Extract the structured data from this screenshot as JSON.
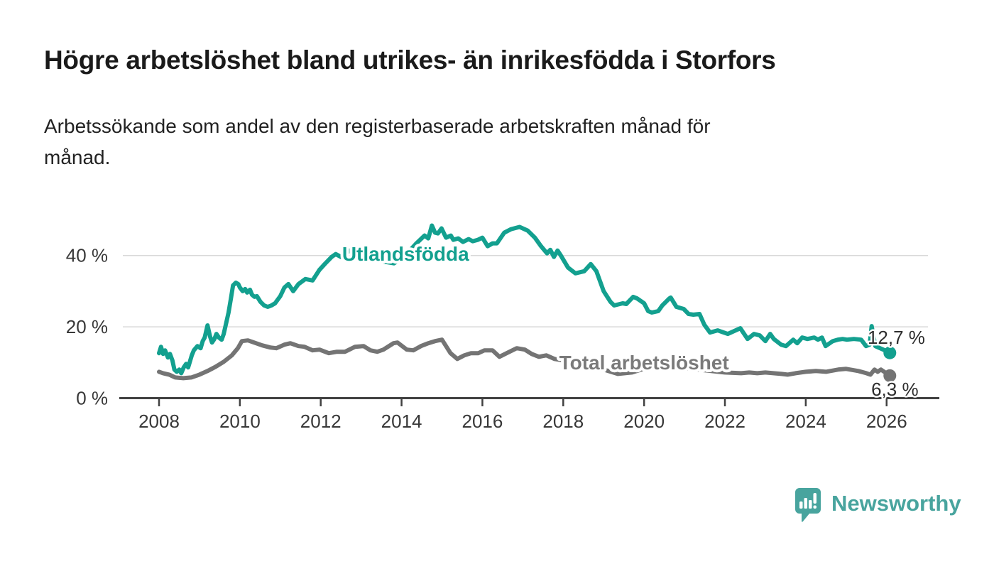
{
  "header": {
    "title": "Högre arbetslöshet bland utrikes- än inrikesfödda i Storfors",
    "subtitle_lines": [
      "Arbetssökande som andel av den registerbaserade arbetskraften månad för",
      "månad."
    ]
  },
  "chart_data": {
    "type": "line",
    "title": "Högre arbetslöshet bland utrikes- än inrikesfödda i Storfors",
    "xlabel": "",
    "ylabel": "Arbetssökande som andel av den registerbaserade arbetskraften",
    "x_axis": {
      "range": [
        2007.1,
        2027.3
      ],
      "ticks": [
        {
          "value": 2008,
          "label": "2008"
        },
        {
          "value": 2010,
          "label": "2010"
        },
        {
          "value": 2012,
          "label": "2012"
        },
        {
          "value": 2014,
          "label": "2014"
        },
        {
          "value": 2016,
          "label": "2016"
        },
        {
          "value": 2018,
          "label": "2018"
        },
        {
          "value": 2020,
          "label": "2020"
        },
        {
          "value": 2022,
          "label": "2022"
        },
        {
          "value": 2024,
          "label": "2024"
        },
        {
          "value": 2026,
          "label": "2026"
        }
      ]
    },
    "y_axis": {
      "range": [
        0,
        50
      ],
      "unit": "%",
      "gridlines": true,
      "ticks": [
        {
          "value": 0,
          "label": "0 %"
        },
        {
          "value": 20,
          "label": "20 %"
        },
        {
          "value": 40,
          "label": "40 %"
        }
      ]
    },
    "series": [
      {
        "name": "Utlandsfödda",
        "color": "#13a08f",
        "end_value": 12.7,
        "end_label": "12,7 %",
        "points": [
          [
            2008.0,
            12.6
          ],
          [
            2008.05,
            14.4
          ],
          [
            2008.1,
            12.4
          ],
          [
            2008.15,
            13.4
          ],
          [
            2008.22,
            11.4
          ],
          [
            2008.27,
            12.4
          ],
          [
            2008.33,
            10.6
          ],
          [
            2008.38,
            8.0
          ],
          [
            2008.44,
            7.4
          ],
          [
            2008.5,
            8.0
          ],
          [
            2008.55,
            7.0
          ],
          [
            2008.61,
            8.6
          ],
          [
            2008.67,
            9.6
          ],
          [
            2008.72,
            8.6
          ],
          [
            2008.81,
            12.0
          ],
          [
            2008.86,
            13.4
          ],
          [
            2008.95,
            14.6
          ],
          [
            2009.03,
            14.0
          ],
          [
            2009.08,
            16.0
          ],
          [
            2009.13,
            17.0
          ],
          [
            2009.2,
            20.4
          ],
          [
            2009.26,
            17.4
          ],
          [
            2009.31,
            15.6
          ],
          [
            2009.37,
            16.6
          ],
          [
            2009.42,
            18.0
          ],
          [
            2009.48,
            17.0
          ],
          [
            2009.55,
            16.4
          ],
          [
            2009.6,
            18.0
          ],
          [
            2009.66,
            21.0
          ],
          [
            2009.72,
            24.0
          ],
          [
            2009.78,
            28.0
          ],
          [
            2009.83,
            31.6
          ],
          [
            2009.9,
            32.4
          ],
          [
            2009.96,
            32.0
          ],
          [
            2010.0,
            31.0
          ],
          [
            2010.07,
            30.0
          ],
          [
            2010.13,
            30.6
          ],
          [
            2010.18,
            29.6
          ],
          [
            2010.25,
            30.4
          ],
          [
            2010.3,
            29.0
          ],
          [
            2010.36,
            28.4
          ],
          [
            2010.42,
            28.6
          ],
          [
            2010.51,
            27.0
          ],
          [
            2010.6,
            26.0
          ],
          [
            2010.69,
            25.6
          ],
          [
            2010.78,
            26.0
          ],
          [
            2010.87,
            26.6
          ],
          [
            2011.0,
            28.6
          ],
          [
            2011.1,
            31.0
          ],
          [
            2011.2,
            32.0
          ],
          [
            2011.32,
            30.0
          ],
          [
            2011.45,
            32.0
          ],
          [
            2011.62,
            33.4
          ],
          [
            2011.8,
            33.0
          ],
          [
            2011.97,
            36.0
          ],
          [
            2012.1,
            37.6
          ],
          [
            2012.27,
            39.6
          ],
          [
            2012.37,
            40.4
          ],
          [
            2012.5,
            39.6
          ],
          [
            2012.72,
            41.4
          ],
          [
            2012.9,
            41.6
          ],
          [
            2013.08,
            40.4
          ],
          [
            2013.25,
            39.2
          ],
          [
            2013.43,
            38.6
          ],
          [
            2013.6,
            38.2
          ],
          [
            2013.81,
            37.8
          ],
          [
            2014.0,
            39.2
          ],
          [
            2014.17,
            41.0
          ],
          [
            2014.35,
            43.2
          ],
          [
            2014.57,
            45.6
          ],
          [
            2014.66,
            44.8
          ],
          [
            2014.75,
            48.4
          ],
          [
            2014.83,
            46.4
          ],
          [
            2014.9,
            46.2
          ],
          [
            2014.99,
            47.6
          ],
          [
            2015.1,
            45.0
          ],
          [
            2015.22,
            45.6
          ],
          [
            2015.28,
            44.4
          ],
          [
            2015.4,
            44.8
          ],
          [
            2015.52,
            43.8
          ],
          [
            2015.66,
            44.6
          ],
          [
            2015.76,
            44.0
          ],
          [
            2015.89,
            44.4
          ],
          [
            2016.0,
            45.0
          ],
          [
            2016.13,
            42.6
          ],
          [
            2016.25,
            43.4
          ],
          [
            2016.36,
            43.4
          ],
          [
            2016.54,
            46.4
          ],
          [
            2016.71,
            47.4
          ],
          [
            2016.92,
            48.0
          ],
          [
            2017.12,
            47.0
          ],
          [
            2017.3,
            45.0
          ],
          [
            2017.45,
            42.6
          ],
          [
            2017.6,
            40.6
          ],
          [
            2017.68,
            41.6
          ],
          [
            2017.77,
            39.6
          ],
          [
            2017.86,
            41.4
          ],
          [
            2017.94,
            40.0
          ],
          [
            2018.12,
            36.6
          ],
          [
            2018.3,
            35.0
          ],
          [
            2018.52,
            35.6
          ],
          [
            2018.68,
            37.6
          ],
          [
            2018.82,
            35.6
          ],
          [
            2019.0,
            30.0
          ],
          [
            2019.17,
            27.0
          ],
          [
            2019.26,
            26.0
          ],
          [
            2019.47,
            26.6
          ],
          [
            2019.56,
            26.4
          ],
          [
            2019.73,
            28.4
          ],
          [
            2019.82,
            28.0
          ],
          [
            2020.0,
            26.6
          ],
          [
            2020.1,
            24.4
          ],
          [
            2020.19,
            24.0
          ],
          [
            2020.35,
            24.4
          ],
          [
            2020.45,
            26.0
          ],
          [
            2020.63,
            28.0
          ],
          [
            2020.66,
            28.2
          ],
          [
            2020.8,
            25.6
          ],
          [
            2020.98,
            25.0
          ],
          [
            2021.1,
            23.6
          ],
          [
            2021.22,
            23.4
          ],
          [
            2021.37,
            23.6
          ],
          [
            2021.49,
            20.6
          ],
          [
            2021.63,
            18.4
          ],
          [
            2021.82,
            19.0
          ],
          [
            2022.07,
            18.0
          ],
          [
            2022.38,
            19.6
          ],
          [
            2022.56,
            16.6
          ],
          [
            2022.72,
            18.0
          ],
          [
            2022.86,
            17.6
          ],
          [
            2023.0,
            16.0
          ],
          [
            2023.12,
            18.0
          ],
          [
            2023.21,
            16.6
          ],
          [
            2023.39,
            15.0
          ],
          [
            2023.51,
            14.6
          ],
          [
            2023.69,
            16.4
          ],
          [
            2023.79,
            15.4
          ],
          [
            2023.91,
            17.0
          ],
          [
            2024.04,
            16.6
          ],
          [
            2024.21,
            17.0
          ],
          [
            2024.3,
            16.4
          ],
          [
            2024.4,
            17.0
          ],
          [
            2024.49,
            14.6
          ],
          [
            2024.67,
            16.0
          ],
          [
            2024.79,
            16.4
          ],
          [
            2024.91,
            16.6
          ],
          [
            2025.02,
            16.4
          ],
          [
            2025.19,
            16.6
          ],
          [
            2025.37,
            16.4
          ],
          [
            2025.49,
            14.6
          ],
          [
            2025.58,
            15.0
          ],
          [
            2025.63,
            20.2
          ],
          [
            2025.72,
            14.6
          ],
          [
            2025.84,
            14.0
          ],
          [
            2026.0,
            13.2
          ],
          [
            2026.08,
            12.7
          ]
        ]
      },
      {
        "name": "Total arbetslöshet",
        "color": "#747474",
        "end_value": 6.3,
        "end_label": "6,3 %",
        "points": [
          [
            2008.0,
            7.4
          ],
          [
            2008.1,
            7.0
          ],
          [
            2008.25,
            6.6
          ],
          [
            2008.4,
            5.8
          ],
          [
            2008.6,
            5.6
          ],
          [
            2008.8,
            5.8
          ],
          [
            2009.0,
            6.6
          ],
          [
            2009.2,
            7.6
          ],
          [
            2009.4,
            8.8
          ],
          [
            2009.6,
            10.2
          ],
          [
            2009.8,
            12.0
          ],
          [
            2009.95,
            14.0
          ],
          [
            2010.05,
            16.0
          ],
          [
            2010.2,
            16.2
          ],
          [
            2010.35,
            15.6
          ],
          [
            2010.55,
            14.8
          ],
          [
            2010.75,
            14.2
          ],
          [
            2010.9,
            14.0
          ],
          [
            2011.1,
            15.0
          ],
          [
            2011.25,
            15.4
          ],
          [
            2011.45,
            14.6
          ],
          [
            2011.6,
            14.4
          ],
          [
            2011.8,
            13.4
          ],
          [
            2011.97,
            13.6
          ],
          [
            2012.2,
            12.6
          ],
          [
            2012.4,
            13.0
          ],
          [
            2012.6,
            13.0
          ],
          [
            2012.85,
            14.4
          ],
          [
            2013.06,
            14.6
          ],
          [
            2013.23,
            13.4
          ],
          [
            2013.4,
            13.0
          ],
          [
            2013.55,
            13.6
          ],
          [
            2013.8,
            15.4
          ],
          [
            2013.9,
            15.6
          ],
          [
            2014.13,
            13.6
          ],
          [
            2014.29,
            13.4
          ],
          [
            2014.48,
            14.6
          ],
          [
            2014.66,
            15.4
          ],
          [
            2014.83,
            16.0
          ],
          [
            2015.0,
            16.4
          ],
          [
            2015.21,
            12.6
          ],
          [
            2015.38,
            11.0
          ],
          [
            2015.55,
            12.0
          ],
          [
            2015.72,
            12.6
          ],
          [
            2015.9,
            12.6
          ],
          [
            2016.05,
            13.4
          ],
          [
            2016.25,
            13.4
          ],
          [
            2016.42,
            11.6
          ],
          [
            2016.6,
            12.6
          ],
          [
            2016.85,
            14.0
          ],
          [
            2017.05,
            13.6
          ],
          [
            2017.22,
            12.4
          ],
          [
            2017.4,
            11.6
          ],
          [
            2017.58,
            12.0
          ],
          [
            2017.78,
            11.0
          ],
          [
            2018.0,
            10.6
          ],
          [
            2018.3,
            10.0
          ],
          [
            2018.6,
            9.4
          ],
          [
            2019.0,
            8.0
          ],
          [
            2019.35,
            6.8
          ],
          [
            2019.7,
            7.2
          ],
          [
            2020.1,
            8.6
          ],
          [
            2020.5,
            9.0
          ],
          [
            2021.0,
            8.4
          ],
          [
            2021.5,
            7.8
          ],
          [
            2022.0,
            7.2
          ],
          [
            2022.4,
            7.0
          ],
          [
            2022.6,
            7.2
          ],
          [
            2022.8,
            7.0
          ],
          [
            2023.0,
            7.2
          ],
          [
            2023.2,
            7.0
          ],
          [
            2023.4,
            6.8
          ],
          [
            2023.55,
            6.6
          ],
          [
            2023.75,
            7.0
          ],
          [
            2024.0,
            7.4
          ],
          [
            2024.25,
            7.6
          ],
          [
            2024.5,
            7.4
          ],
          [
            2024.8,
            8.0
          ],
          [
            2025.0,
            8.2
          ],
          [
            2025.3,
            7.6
          ],
          [
            2025.5,
            7.0
          ],
          [
            2025.6,
            6.6
          ],
          [
            2025.7,
            8.0
          ],
          [
            2025.78,
            7.4
          ],
          [
            2025.86,
            8.0
          ],
          [
            2026.08,
            6.3
          ]
        ]
      }
    ],
    "annotations": {
      "series_labels": [
        {
          "text": "Utlandsfödda",
          "x": 2014.1,
          "y": 40.5,
          "color": "#13a08f",
          "anchor": "middle"
        },
        {
          "text": "Total arbetslöshet",
          "x": 2020.0,
          "y": 10.1,
          "color": "#7a7a7a",
          "anchor": "middle"
        }
      ],
      "value_labels": [
        {
          "text": "12,7 %",
          "x": 2025.53,
          "y": 15.2,
          "anchor": "start"
        },
        {
          "text": "6,3 %",
          "x": 2025.62,
          "y": 0.7,
          "anchor": "start"
        }
      ]
    },
    "colors": {
      "grid": "#d9d9d9",
      "axis": "#414141",
      "tick_label": "#383838",
      "value_label": "#2d2d2d"
    }
  },
  "footer": {
    "brand": "Newsworthy",
    "brand_color": "#48a49e",
    "logo_icon": "bar-chart-speech-bubble"
  }
}
